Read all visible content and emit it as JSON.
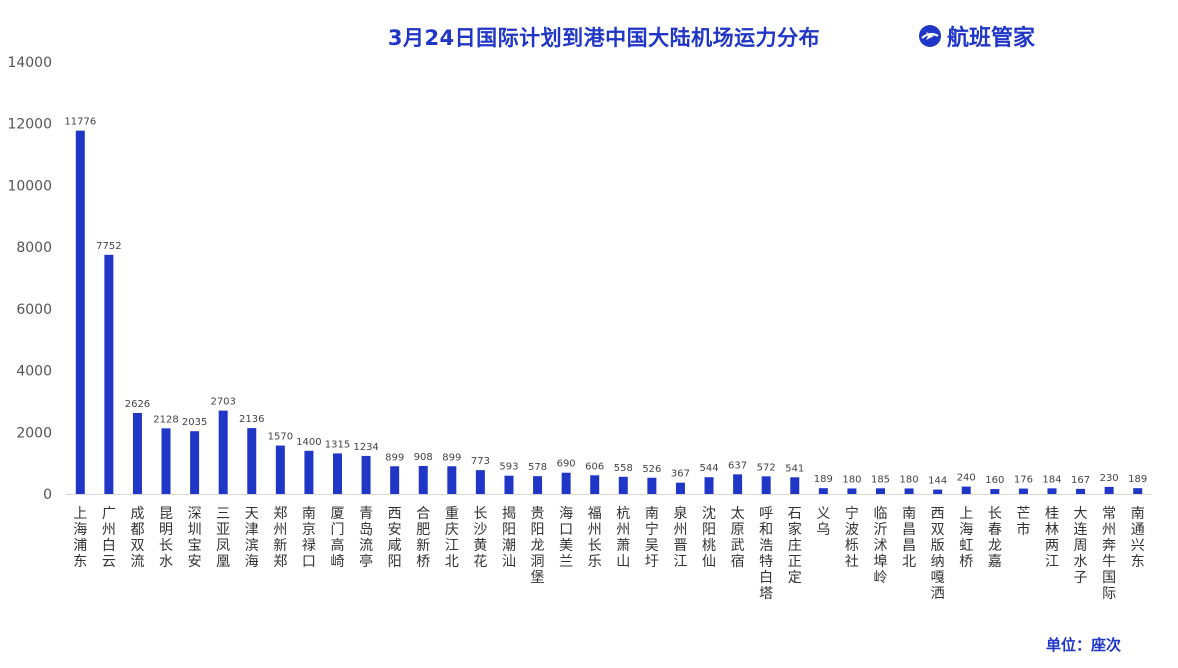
{
  "title": "3月24日国际计划到港中国大陆机场运力分布",
  "brand": {
    "name": "航班管家",
    "icon": "airplane-globe-icon",
    "color": "#1f36c6"
  },
  "unit": "单位：座次",
  "chart_data": {
    "type": "bar",
    "categories": [
      "上海浦东",
      "广州白云",
      "成都双流",
      "昆明长水",
      "深圳宝安",
      "三亚凤凰",
      "天津滨海",
      "郑州新郑",
      "南京禄口",
      "厦门高崎",
      "青岛流亭",
      "西安咸阳",
      "合肥新桥",
      "重庆江北",
      "长沙黄花",
      "揭阳潮汕",
      "贵阳龙洞堡",
      "海口美兰",
      "福州长乐",
      "杭州萧山",
      "南宁吴圩",
      "泉州晋江",
      "沈阳桃仙",
      "太原武宿",
      "呼和浩特白塔",
      "石家庄正定",
      "义乌",
      "宁波栎社",
      "临沂沭埠岭",
      "南昌昌北",
      "西双版纳嘎洒",
      "上海虹桥",
      "长春龙嘉",
      "芒市",
      "桂林两江",
      "大连周水子",
      "常州奔牛国际",
      "南通兴东"
    ],
    "values": [
      11776,
      7752,
      2626,
      2128,
      2035,
      2703,
      2136,
      1570,
      1400,
      1315,
      1234,
      899,
      908,
      899,
      773,
      593,
      578,
      690,
      606,
      558,
      526,
      367,
      544,
      637,
      572,
      541,
      189,
      180,
      185,
      180,
      144,
      240,
      160,
      176,
      184,
      167,
      230,
      189
    ],
    "yticks": [
      0,
      2000,
      4000,
      6000,
      8000,
      10000,
      12000,
      14000
    ],
    "ylim": [
      0,
      14000
    ],
    "grid": false,
    "bar_color": "#1f36c6",
    "xlabel": "",
    "ylabel": ""
  }
}
